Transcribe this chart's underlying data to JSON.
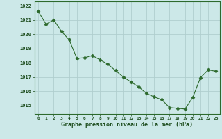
{
  "x": [
    0,
    1,
    2,
    3,
    4,
    5,
    6,
    7,
    8,
    9,
    10,
    11,
    12,
    13,
    14,
    15,
    16,
    17,
    18,
    19,
    20,
    21,
    22,
    23
  ],
  "y": [
    1021.6,
    1020.7,
    1021.0,
    1020.2,
    1019.6,
    1018.3,
    1018.35,
    1018.5,
    1018.2,
    1017.9,
    1017.45,
    1017.0,
    1016.65,
    1016.3,
    1015.85,
    1015.6,
    1015.4,
    1014.85,
    1014.8,
    1014.75,
    1015.55,
    1016.95,
    1017.5,
    1017.4
  ],
  "line_color": "#2d6a2d",
  "marker": "D",
  "marker_size": 2.5,
  "bg_color": "#cce8e8",
  "grid_color": "#b0cece",
  "xlabel": "Graphe pression niveau de la mer (hPa)",
  "xlabel_color": "#1a4a1a",
  "tick_label_color": "#1a4a1a",
  "ylim": [
    1014.4,
    1022.3
  ],
  "yticks": [
    1015,
    1016,
    1017,
    1018,
    1019,
    1020,
    1021,
    1022
  ],
  "xticks": [
    0,
    1,
    2,
    3,
    4,
    5,
    6,
    7,
    8,
    9,
    10,
    11,
    12,
    13,
    14,
    15,
    16,
    17,
    18,
    19,
    20,
    21,
    22,
    23
  ],
  "xtick_labels": [
    "0",
    "1",
    "2",
    "3",
    "4",
    "5",
    "6",
    "7",
    "8",
    "9",
    "10",
    "11",
    "12",
    "13",
    "14",
    "15",
    "16",
    "17",
    "18",
    "19",
    "20",
    "21",
    "22",
    "23"
  ]
}
